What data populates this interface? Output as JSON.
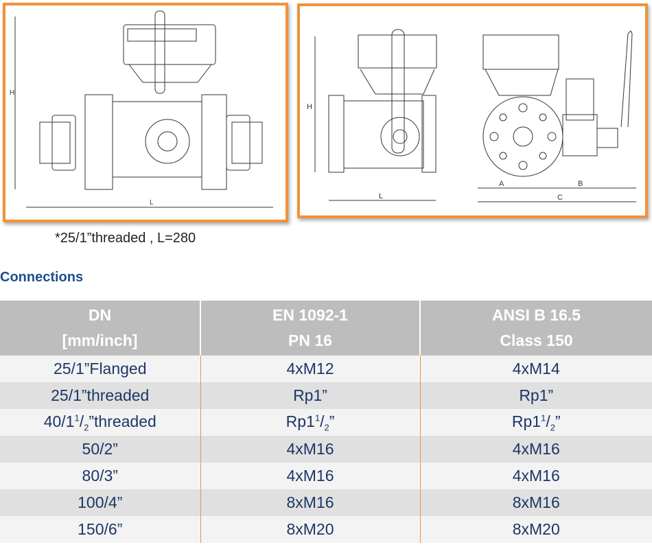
{
  "drawings": {
    "left": {
      "dimension_labels": [
        "H",
        "L"
      ]
    },
    "right": {
      "dimension_labels": [
        "H",
        "L",
        "A",
        "B",
        "C"
      ]
    },
    "frame_color": "#f0923a"
  },
  "caption": "*25/1”threaded , L=280",
  "section_title": "Connections",
  "table": {
    "headers": [
      [
        "DN",
        "[mm/inch]"
      ],
      [
        "EN 1092-1",
        "PN 16"
      ],
      [
        "ANSI B 16.5",
        "Class 150"
      ]
    ],
    "rows": [
      {
        "dn": "25/1”Flanged",
        "en": "4xM12",
        "ansi": "4xM14"
      },
      {
        "dn": "25/1”threaded",
        "en": "Rp1”",
        "ansi": "Rp1”"
      },
      {
        "dn_pre": "40/1",
        "dn_sup": "1",
        "dn_mid": "/",
        "dn_sub": "2",
        "dn_post": "”threaded",
        "en_pre": "Rp1",
        "en_sup": "1",
        "en_mid": "/",
        "en_sub": "2",
        "en_post": "”",
        "ansi_pre": "Rp1",
        "ansi_sup": "1",
        "ansi_mid": "/",
        "ansi_sub": "2",
        "ansi_post": "”"
      },
      {
        "dn": "50/2”",
        "en": "4xM16",
        "ansi": "4xM16"
      },
      {
        "dn": "80/3”",
        "en": "4xM16",
        "ansi": "4xM16"
      },
      {
        "dn": "100/4”",
        "en": "8xM16",
        "ansi": "8xM16"
      },
      {
        "dn": "150/6”",
        "en": "8xM20",
        "ansi": "8xM20"
      }
    ],
    "colors": {
      "header_bg": "#bdbdbd",
      "text": "#1c3766",
      "divider": "#f0923a"
    }
  }
}
